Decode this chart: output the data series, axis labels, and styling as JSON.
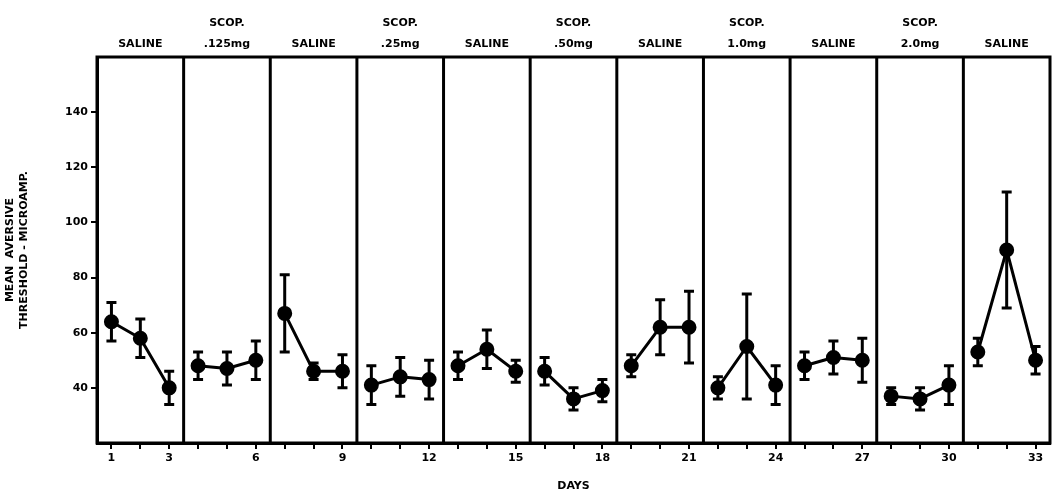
{
  "chart_data": {
    "type": "line",
    "xlabel": "DAYS",
    "ylabel": "MEAN  AVERSIVE\nTHRESHOLD - MICROAMP.",
    "xlim": [
      0.5,
      33.5
    ],
    "xticks": [
      1,
      {
        "value": 2,
        "label": null
      },
      3,
      {
        "value": 4,
        "label": null
      },
      {
        "value": 5,
        "label": null
      },
      6,
      {
        "value": 7,
        "label": null
      },
      {
        "value": 8,
        "label": null
      },
      9,
      {
        "value": 10,
        "label": null
      },
      {
        "value": 11,
        "label": null
      },
      12,
      {
        "value": 13,
        "label": null
      },
      {
        "value": 14,
        "label": null
      },
      15,
      {
        "value": 16,
        "label": null
      },
      {
        "value": 17,
        "label": null
      },
      18,
      {
        "value": 19,
        "label": null
      },
      {
        "value": 20,
        "label": null
      },
      21,
      {
        "value": 22,
        "label": null
      },
      {
        "value": 23,
        "label": null
      },
      24,
      {
        "value": 25,
        "label": null
      },
      {
        "value": 26,
        "label": null
      },
      27,
      {
        "value": 28,
        "label": null
      },
      {
        "value": 29,
        "label": null
      },
      30,
      {
        "value": 31,
        "label": null
      },
      {
        "value": 32,
        "label": null
      },
      33
    ],
    "ylim": [
      20,
      160
    ],
    "yticks": [
      40,
      60,
      80,
      100,
      120,
      140
    ],
    "marker": "circle",
    "line_style": "solid",
    "ref_lines": [
      {
        "axis": "x",
        "value": 3.5
      },
      {
        "axis": "x",
        "value": 6.5
      },
      {
        "axis": "x",
        "value": 9.5
      },
      {
        "axis": "x",
        "value": 12.5
      },
      {
        "axis": "x",
        "value": 15.5
      },
      {
        "axis": "x",
        "value": 18.5
      },
      {
        "axis": "x",
        "value": 21.5
      },
      {
        "axis": "x",
        "value": 24.5
      },
      {
        "axis": "x",
        "value": 27.5
      },
      {
        "axis": "x",
        "value": 30.5
      }
    ],
    "annotations": [
      "SALINE",
      "SCOP.\n.125mg",
      "SALINE",
      "SCOP.\n.25mg",
      "SALINE",
      "SCOP.\n.50mg",
      "SALINE",
      "SCOP.\n1.0mg",
      "SALINE",
      "SCOP.\n2.0mg",
      "SALINE"
    ],
    "series": [
      {
        "color": "#000000",
        "x": [
          1,
          2,
          3
        ],
        "values": [
          64,
          58,
          40
        ],
        "errors": [
          7,
          7,
          6
        ]
      },
      {
        "color": "#000000",
        "x": [
          4,
          5,
          6
        ],
        "values": [
          48,
          47,
          50
        ],
        "errors": [
          5,
          6,
          7
        ]
      },
      {
        "color": "#000000",
        "x": [
          7,
          8,
          9
        ],
        "values": [
          67,
          46,
          46
        ],
        "errors": [
          14,
          3,
          6
        ]
      },
      {
        "color": "#000000",
        "x": [
          10,
          11,
          12
        ],
        "values": [
          41,
          44,
          43
        ],
        "errors": [
          7,
          7,
          7
        ]
      },
      {
        "color": "#000000",
        "x": [
          13,
          14,
          15
        ],
        "values": [
          48,
          54,
          46
        ],
        "errors": [
          5,
          7,
          4
        ]
      },
      {
        "color": "#000000",
        "x": [
          16,
          17,
          18
        ],
        "values": [
          46,
          36,
          39
        ],
        "errors": [
          5,
          4,
          4
        ]
      },
      {
        "color": "#000000",
        "x": [
          19,
          20,
          21
        ],
        "values": [
          48,
          62,
          62
        ],
        "errors": [
          4,
          10,
          13
        ]
      },
      {
        "color": "#000000",
        "x": [
          22,
          23,
          24
        ],
        "values": [
          40,
          55,
          41
        ],
        "errors": [
          4,
          19,
          7
        ]
      },
      {
        "color": "#000000",
        "x": [
          25,
          26,
          27
        ],
        "values": [
          48,
          51,
          50
        ],
        "errors": [
          5,
          6,
          8
        ]
      },
      {
        "color": "#000000",
        "x": [
          28,
          29,
          30
        ],
        "values": [
          37,
          36,
          41
        ],
        "errors": [
          3,
          4,
          7
        ]
      },
      {
        "color": "#000000",
        "x": [
          31,
          32,
          33
        ],
        "values": [
          53,
          90,
          50
        ],
        "errors": [
          5,
          21,
          5
        ]
      }
    ]
  }
}
